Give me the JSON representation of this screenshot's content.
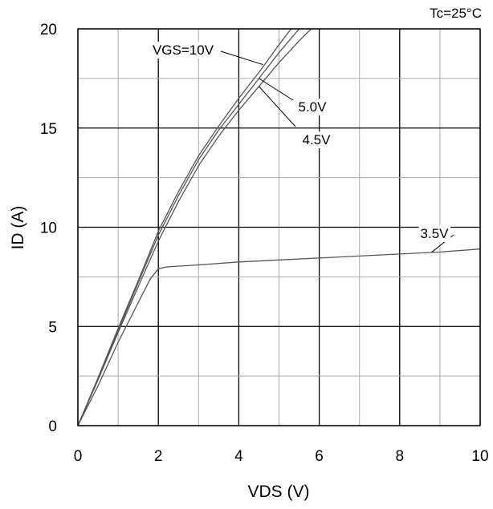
{
  "chart_data": {
    "type": "line",
    "title": "",
    "condition": "Tc=25°C",
    "xlabel": "VDS (V)",
    "ylabel": "ID (A)",
    "xlim": [
      0,
      10
    ],
    "ylim": [
      0,
      20
    ],
    "xticks": [
      0,
      2,
      4,
      6,
      8,
      10
    ],
    "yticks": [
      0,
      5,
      10,
      15,
      20
    ],
    "minor_grid_step_x": 1,
    "minor_grid_step_y": 2.5,
    "grid": true,
    "series": [
      {
        "name": "VGS=10V",
        "x": [
          0,
          0.5,
          1,
          1.5,
          2,
          2.5,
          3,
          3.5,
          4,
          4.5,
          5,
          5.3
        ],
        "y": [
          0,
          2.4,
          4.9,
          7.3,
          9.8,
          11.8,
          13.6,
          15.1,
          16.5,
          17.8,
          19.2,
          20
        ]
      },
      {
        "name": "5.0V",
        "x": [
          0,
          0.5,
          1,
          1.5,
          2,
          2.5,
          3,
          3.5,
          4,
          4.5,
          5,
          5.5
        ],
        "y": [
          0,
          2.35,
          4.8,
          7.2,
          9.6,
          11.6,
          13.4,
          14.9,
          16.2,
          17.5,
          18.8,
          20
        ]
      },
      {
        "name": "4.5V",
        "x": [
          0,
          0.5,
          1,
          1.5,
          2,
          2.5,
          3,
          3.5,
          4,
          4.5,
          5,
          5.5,
          5.8
        ],
        "y": [
          0,
          2.3,
          4.7,
          7.0,
          9.3,
          11.3,
          13.1,
          14.6,
          15.9,
          17.1,
          18.3,
          19.4,
          20
        ]
      },
      {
        "name": "3.5V",
        "x": [
          0,
          0.5,
          1,
          1.5,
          1.8,
          2,
          2.2,
          3,
          4,
          5,
          6,
          7,
          8,
          9,
          10
        ],
        "y": [
          0,
          2.0,
          4.2,
          6.2,
          7.4,
          7.9,
          8.0,
          8.1,
          8.25,
          8.35,
          8.45,
          8.55,
          8.65,
          8.75,
          8.9
        ]
      }
    ],
    "annotations": [
      {
        "text": "VGS=10V",
        "series": "VGS=10V",
        "anchor_x": 4.6,
        "anchor_y": 18.2
      },
      {
        "text": "5.0V",
        "series": "5.0V",
        "anchor_x": 4.5,
        "anchor_y": 17.5
      },
      {
        "text": "4.5V",
        "series": "4.5V",
        "anchor_x": 4.5,
        "anchor_y": 17.1
      },
      {
        "text": "3.5V",
        "series": "3.5V",
        "anchor_x": 8.8,
        "anchor_y": 8.75
      }
    ]
  }
}
